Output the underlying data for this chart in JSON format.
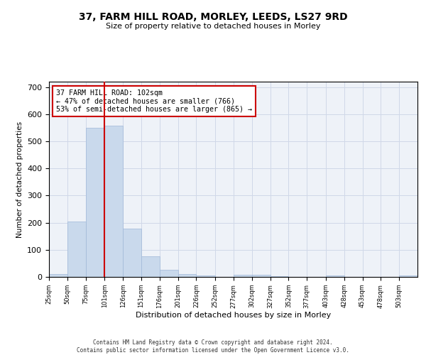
{
  "title": "37, FARM HILL ROAD, MORLEY, LEEDS, LS27 9RD",
  "subtitle": "Size of property relative to detached houses in Morley",
  "xlabel": "Distribution of detached houses by size in Morley",
  "ylabel": "Number of detached properties",
  "bar_color": "#c9d9ec",
  "bar_edgecolor": "#a0b8d8",
  "grid_color": "#d0d8e8",
  "background_color": "#eef2f8",
  "vline_x": 101,
  "vline_color": "#cc0000",
  "annotation_text": "37 FARM HILL ROAD: 102sqm\n← 47% of detached houses are smaller (766)\n53% of semi-detached houses are larger (865) →",
  "annotation_box_color": "#ffffff",
  "annotation_box_edgecolor": "#cc0000",
  "footer": "Contains HM Land Registry data © Crown copyright and database right 2024.\nContains public sector information licensed under the Open Government Licence v3.0.",
  "bins": [
    25,
    50,
    75,
    101,
    126,
    151,
    176,
    201,
    226,
    252,
    277,
    302,
    327,
    352,
    377,
    403,
    428,
    453,
    478,
    503,
    528
  ],
  "bar_heights": [
    10,
    204,
    551,
    558,
    178,
    75,
    27,
    10,
    5,
    0,
    8,
    8,
    2,
    0,
    0,
    5,
    0,
    0,
    0,
    5
  ],
  "ylim": [
    0,
    720
  ],
  "yticks": [
    0,
    100,
    200,
    300,
    400,
    500,
    600,
    700
  ]
}
